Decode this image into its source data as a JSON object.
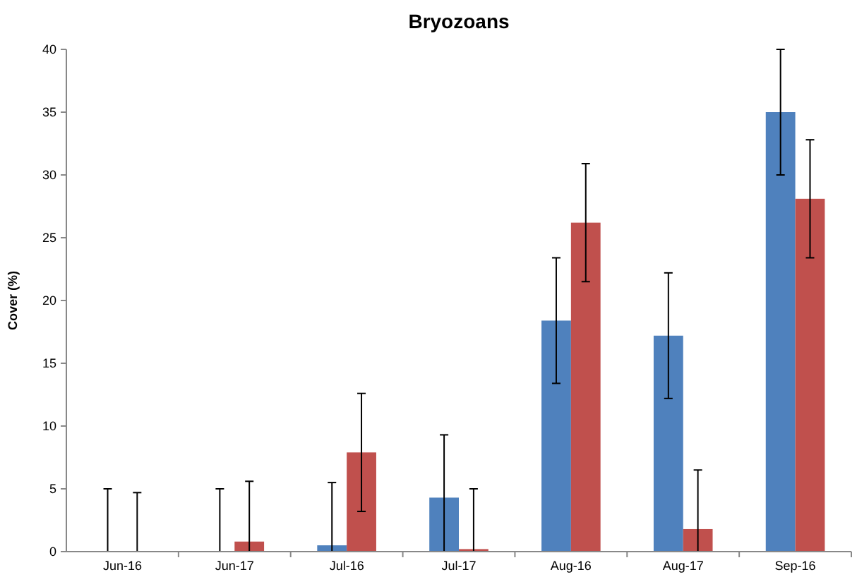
{
  "chart_data": {
    "type": "bar",
    "title": "Bryozoans",
    "ylabel": "Cover (%)",
    "categories": [
      "Jun-16",
      "Jun-17",
      "Jul-16",
      "Jul-17",
      "Aug-16",
      "Aug-17",
      "Sep-16"
    ],
    "series": [
      {
        "color": "#4f81bd",
        "values": [
          0,
          0,
          0.5,
          4.3,
          18.4,
          17.2,
          35
        ],
        "errors": [
          [
            0,
            5
          ],
          [
            0,
            5
          ],
          [
            0,
            5.5
          ],
          [
            0,
            9.3
          ],
          5,
          5,
          5
        ]
      },
      {
        "color": "#c0504d",
        "values": [
          0,
          0.8,
          7.9,
          0.2,
          26.2,
          1.8,
          28.1
        ],
        "errors": [
          [
            0,
            4.7
          ],
          [
            0,
            5.6
          ],
          4.7,
          [
            0,
            5
          ],
          4.7,
          [
            0,
            6.5
          ],
          4.7
        ]
      }
    ],
    "ylim": [
      0,
      40
    ],
    "yticks": [
      0,
      5,
      10,
      15,
      20,
      25,
      30,
      35,
      40
    ],
    "grid": false
  }
}
